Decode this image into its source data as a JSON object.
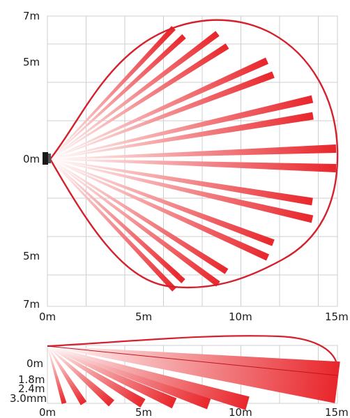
{
  "top_view": {
    "y_labels": [
      "7m",
      "5m",
      "0m",
      "5m",
      "7m"
    ],
    "x_labels": [
      "0m",
      "5m",
      "10m",
      "15m"
    ]
  },
  "side_view": {
    "y_labels": [
      "0m",
      "1.8m",
      "2.4m",
      "3.0mm"
    ],
    "x_labels": [
      "0m",
      "5m",
      "10m",
      "15m"
    ]
  },
  "colors": {
    "beam_end": "#e8262b",
    "beam_start": "#ffffff",
    "outline": "#d4212d",
    "grid": "#cfcfcf",
    "sensor": "#1a1a1a"
  },
  "detection": {
    "top_view_beam_count": 20,
    "side_view_beam_count": 8,
    "max_range_m": 15,
    "half_width_m": 7
  }
}
